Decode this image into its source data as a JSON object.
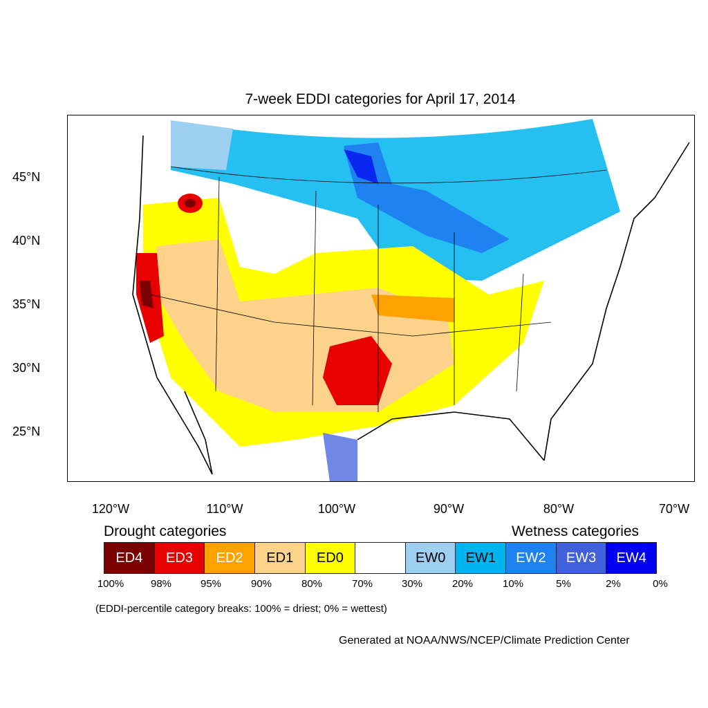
{
  "title": "7-week EDDI categories for April 17, 2014",
  "lat_labels": [
    "45°N",
    "40°N",
    "35°N",
    "30°N",
    "25°N"
  ],
  "lon_labels": [
    "120°W",
    "110°W",
    "100°W",
    "90°W",
    "80°W",
    "70°W"
  ],
  "legend": {
    "drought_heading": "Drought categories",
    "wetness_heading": "Wetness categories",
    "categories": [
      {
        "label": "ED4",
        "color": "#7a0000",
        "text_color": "#ffffff"
      },
      {
        "label": "ED3",
        "color": "#e60000",
        "text_color": "#ffffff"
      },
      {
        "label": "ED2",
        "color": "#ffa200",
        "text_color": "#ffffff"
      },
      {
        "label": "ED1",
        "color": "#fdd28a",
        "text_color": "#000000"
      },
      {
        "label": "ED0",
        "color": "#ffff00",
        "text_color": "#000000"
      },
      {
        "label": "",
        "color": "#ffffff",
        "text_color": "#000000"
      },
      {
        "label": "EW0",
        "color": "#9ccff0",
        "text_color": "#000000"
      },
      {
        "label": "EW1",
        "color": "#00b4f0",
        "text_color": "#000000"
      },
      {
        "label": "EW2",
        "color": "#1e82f0",
        "text_color": "#ffffff"
      },
      {
        "label": "EW3",
        "color": "#4060dc",
        "text_color": "#ffffff"
      },
      {
        "label": "EW4",
        "color": "#0000f0",
        "text_color": "#ffffff"
      }
    ],
    "breaks": [
      "100%",
      "98%",
      "95%",
      "90%",
      "80%",
      "70%",
      "30%",
      "20%",
      "10%",
      "5%",
      "2%",
      "0%"
    ]
  },
  "note": "(EDDI-percentile category breaks: 100% = driest; 0% = wettest)",
  "credit": "Generated at NOAA/NWS/NCEP/Climate Prediction Center"
}
